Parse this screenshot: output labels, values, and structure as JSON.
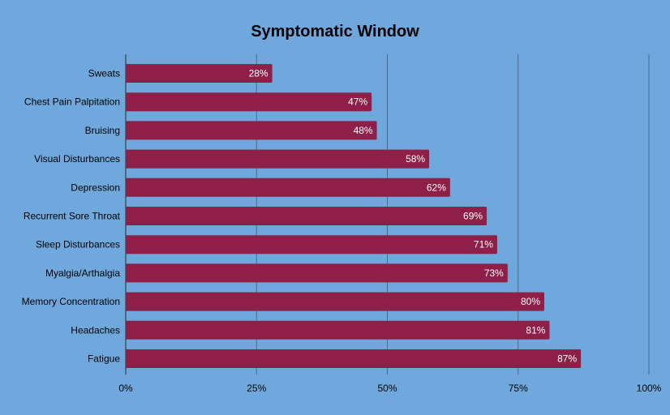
{
  "colors": {
    "background": "#6fa8dc",
    "bar": "#8e1f47",
    "grid": "#4a6a8a",
    "text": "#000000",
    "data_label": "#ffffff"
  },
  "chart_data": {
    "type": "bar",
    "orientation": "horizontal",
    "title": "Symptomatic Window",
    "xlabel": "",
    "ylabel": "",
    "categories": [
      "Sweats",
      "Chest Pain Palpitation",
      "Bruising",
      "Visual Disturbances",
      "Depression",
      "Recurrent Sore Throat",
      "Sleep Disturbances",
      "Myalgia/Arthalgia",
      "Memory Concentration",
      "Headaches",
      "Fatigue"
    ],
    "values": [
      28,
      47,
      48,
      58,
      62,
      69,
      71,
      73,
      80,
      81,
      87
    ],
    "data_labels": [
      "28%",
      "47%",
      "48%",
      "58%",
      "62%",
      "69%",
      "71%",
      "73%",
      "80%",
      "81%",
      "87%"
    ],
    "xlim": [
      0,
      100
    ],
    "ticks": [
      0,
      25,
      50,
      75,
      100
    ],
    "tick_labels": [
      "0%",
      "25%",
      "50%",
      "75%",
      "100%"
    ],
    "grid": true,
    "legend": "none"
  }
}
